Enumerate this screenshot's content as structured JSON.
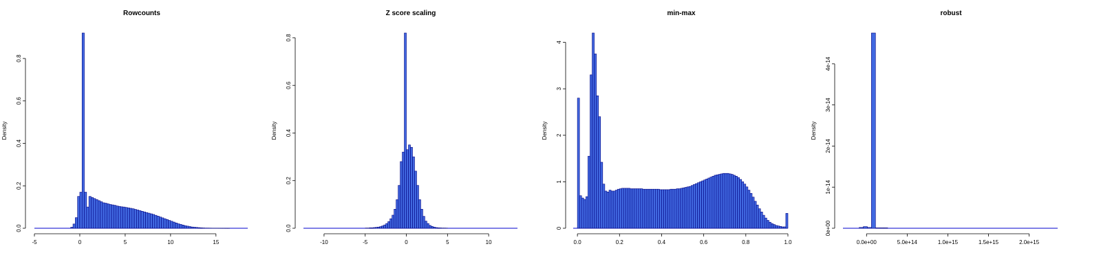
{
  "figure": {
    "panels": [
      {
        "title": "Rowcounts"
      },
      {
        "title": "Z score scaling"
      },
      {
        "title": "min-max"
      },
      {
        "title": "robust"
      }
    ]
  },
  "colors": {
    "bar_fill": "#4169e1",
    "bar_border": "#000080",
    "baseline": "#0000cd"
  },
  "chart_data": [
    {
      "type": "bar",
      "title": "Rowcounts",
      "ylabel": "Density",
      "xlim": [
        -5,
        18.5
      ],
      "ylim": [
        0,
        0.92
      ],
      "xticks": [
        -5,
        0,
        5,
        10,
        15
      ],
      "xtick_labels": [
        "-5",
        "0",
        "5",
        "10",
        "15"
      ],
      "yticks": [
        0,
        0.2,
        0.4,
        0.6,
        0.8
      ],
      "ytick_labels": [
        "0.0",
        "0.2",
        "0.4",
        "0.6",
        "0.8"
      ],
      "bin_start": -5.0,
      "bin_width": 0.25,
      "values": [
        0,
        0,
        0,
        0,
        0,
        0,
        0,
        0,
        0,
        0,
        0,
        0,
        0,
        0,
        0,
        0,
        0.005,
        0.02,
        0.05,
        0.15,
        0.17,
        0.92,
        0.17,
        0.1,
        0.15,
        0.145,
        0.14,
        0.135,
        0.13,
        0.125,
        0.12,
        0.118,
        0.115,
        0.112,
        0.11,
        0.108,
        0.105,
        0.103,
        0.101,
        0.1,
        0.098,
        0.096,
        0.094,
        0.092,
        0.089,
        0.086,
        0.083,
        0.08,
        0.077,
        0.074,
        0.071,
        0.068,
        0.065,
        0.061,
        0.057,
        0.053,
        0.049,
        0.045,
        0.041,
        0.037,
        0.033,
        0.029,
        0.025,
        0.021,
        0.018,
        0.015,
        0.012,
        0.01,
        0.008,
        0.006,
        0.005,
        0.004,
        0.003,
        0.002,
        0.0015,
        0.001,
        0.001,
        0.0008,
        0.0006,
        0.0005,
        0.0004,
        0.0003,
        0.0002,
        0.0002,
        0.0001,
        0.0001,
        0,
        0,
        0,
        0,
        0,
        0,
        0,
        0
      ]
    },
    {
      "type": "bar",
      "title": "Z score scaling",
      "ylabel": "Density",
      "xlim": [
        -12.5,
        13.5
      ],
      "ylim": [
        0,
        0.82
      ],
      "xticks": [
        -10,
        -5,
        0,
        5,
        10
      ],
      "xtick_labels": [
        "-10",
        "-5",
        "0",
        "5",
        "10"
      ],
      "yticks": [
        0,
        0.2,
        0.4,
        0.6,
        0.8
      ],
      "ytick_labels": [
        "0.0",
        "0.2",
        "0.4",
        "0.6",
        "0.8"
      ],
      "bin_start": -5.0,
      "bin_width": 0.25,
      "values": [
        0.001,
        0.001,
        0.002,
        0.002,
        0.003,
        0.004,
        0.005,
        0.007,
        0.01,
        0.014,
        0.02,
        0.028,
        0.04,
        0.055,
        0.08,
        0.12,
        0.18,
        0.28,
        0.32,
        0.82,
        0.33,
        0.35,
        0.34,
        0.3,
        0.24,
        0.18,
        0.12,
        0.08,
        0.05,
        0.03,
        0.02,
        0.012,
        0.008,
        0.005,
        0.003,
        0.002,
        0.0015,
        0.001,
        0.001,
        0.0008
      ]
    },
    {
      "type": "bar",
      "title": "min-max",
      "ylabel": "Density",
      "xlim": [
        -0.02,
        1.0
      ],
      "ylim": [
        0,
        4.2
      ],
      "xticks": [
        0,
        0.2,
        0.4,
        0.6,
        0.8,
        1.0
      ],
      "xtick_labels": [
        "0.0",
        "0.2",
        "0.4",
        "0.6",
        "0.8",
        "1.0"
      ],
      "yticks": [
        0,
        1,
        2,
        3,
        4
      ],
      "ytick_labels": [
        "0",
        "1",
        "2",
        "3",
        "4"
      ],
      "bin_start": 0.0,
      "bin_width": 0.01,
      "values": [
        2.8,
        0.7,
        0.65,
        0.62,
        0.68,
        1.55,
        3.3,
        4.2,
        3.75,
        2.85,
        2.4,
        1.42,
        0.95,
        0.8,
        0.78,
        0.82,
        0.8,
        0.8,
        0.82,
        0.84,
        0.85,
        0.86,
        0.86,
        0.86,
        0.86,
        0.85,
        0.85,
        0.85,
        0.85,
        0.85,
        0.85,
        0.84,
        0.84,
        0.84,
        0.84,
        0.84,
        0.84,
        0.84,
        0.84,
        0.83,
        0.83,
        0.83,
        0.83,
        0.83,
        0.84,
        0.84,
        0.84,
        0.85,
        0.85,
        0.86,
        0.87,
        0.88,
        0.89,
        0.9,
        0.92,
        0.94,
        0.96,
        0.98,
        1.0,
        1.02,
        1.04,
        1.06,
        1.08,
        1.1,
        1.12,
        1.14,
        1.15,
        1.16,
        1.17,
        1.18,
        1.18,
        1.18,
        1.17,
        1.16,
        1.14,
        1.12,
        1.09,
        1.05,
        1.0,
        0.95,
        0.89,
        0.82,
        0.75,
        0.67,
        0.58,
        0.5,
        0.42,
        0.35,
        0.28,
        0.22,
        0.17,
        0.13,
        0.1,
        0.08,
        0.06,
        0.05,
        0.04,
        0.03,
        0.03,
        0.32
      ]
    },
    {
      "type": "bar",
      "title": "robust",
      "ylabel": "Density",
      "xlim": [
        -290000000000000.0,
        2350000000000000.0
      ],
      "ylim": [
        0,
        4.75e-14
      ],
      "xticks": [
        0,
        500000000000000.0,
        1000000000000000.0,
        1500000000000000.0,
        2000000000000000.0
      ],
      "xtick_labels": [
        "0.0e+00",
        "5.0e+14",
        "1.0e+15",
        "1.5e+15",
        "2.0e+15"
      ],
      "yticks": [
        0,
        1e-14,
        2e-14,
        3e-14,
        4e-14
      ],
      "ytick_labels": [
        "0e+00",
        "1e-14",
        "2e-14",
        "3e-14",
        "4e-14"
      ],
      "bin_start": -290000000000000.0,
      "bin_width": 50000000000000.0,
      "values": [
        0,
        0,
        0,
        0,
        2e-16,
        4e-16,
        2e-16,
        4.75e-14,
        1e-16,
        1e-16,
        1e-16,
        0,
        0,
        0,
        0,
        0,
        0,
        0,
        0,
        0,
        0,
        0,
        0,
        0,
        0,
        0,
        0,
        0,
        0,
        0,
        0,
        0,
        0,
        0,
        0,
        0,
        0,
        0,
        0,
        0,
        0,
        0,
        0,
        0,
        0,
        0,
        0,
        0,
        0,
        0,
        0,
        0,
        0
      ]
    }
  ]
}
